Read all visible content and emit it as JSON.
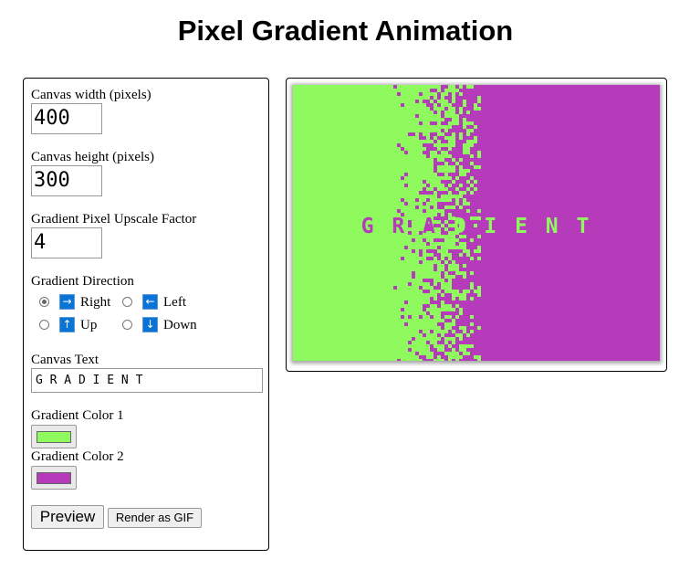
{
  "page": {
    "title": "Pixel Gradient Animation"
  },
  "controls": {
    "width": {
      "label": "Canvas width (pixels)",
      "value": "400"
    },
    "height": {
      "label": "Canvas height (pixels)",
      "value": "300"
    },
    "upscale": {
      "label": "Gradient Pixel Upscale Factor",
      "value": "4"
    },
    "direction": {
      "label": "Gradient Direction",
      "selected": "Right",
      "options": [
        {
          "label": "Right",
          "arrow": "→"
        },
        {
          "label": "Left",
          "arrow": "←"
        },
        {
          "label": "Up",
          "arrow": "↑"
        },
        {
          "label": "Down",
          "arrow": "↓"
        }
      ]
    },
    "text": {
      "label": "Canvas Text",
      "value": "G R A D I E N T"
    },
    "color1": {
      "label": "Gradient Color 1",
      "value": "#8efa5e"
    },
    "color2": {
      "label": "Gradient Color 2",
      "value": "#b63bbb"
    },
    "preview_label": "Preview",
    "render_label": "Render as GIF"
  },
  "canvas": {
    "text": "G R A D I E N T"
  }
}
